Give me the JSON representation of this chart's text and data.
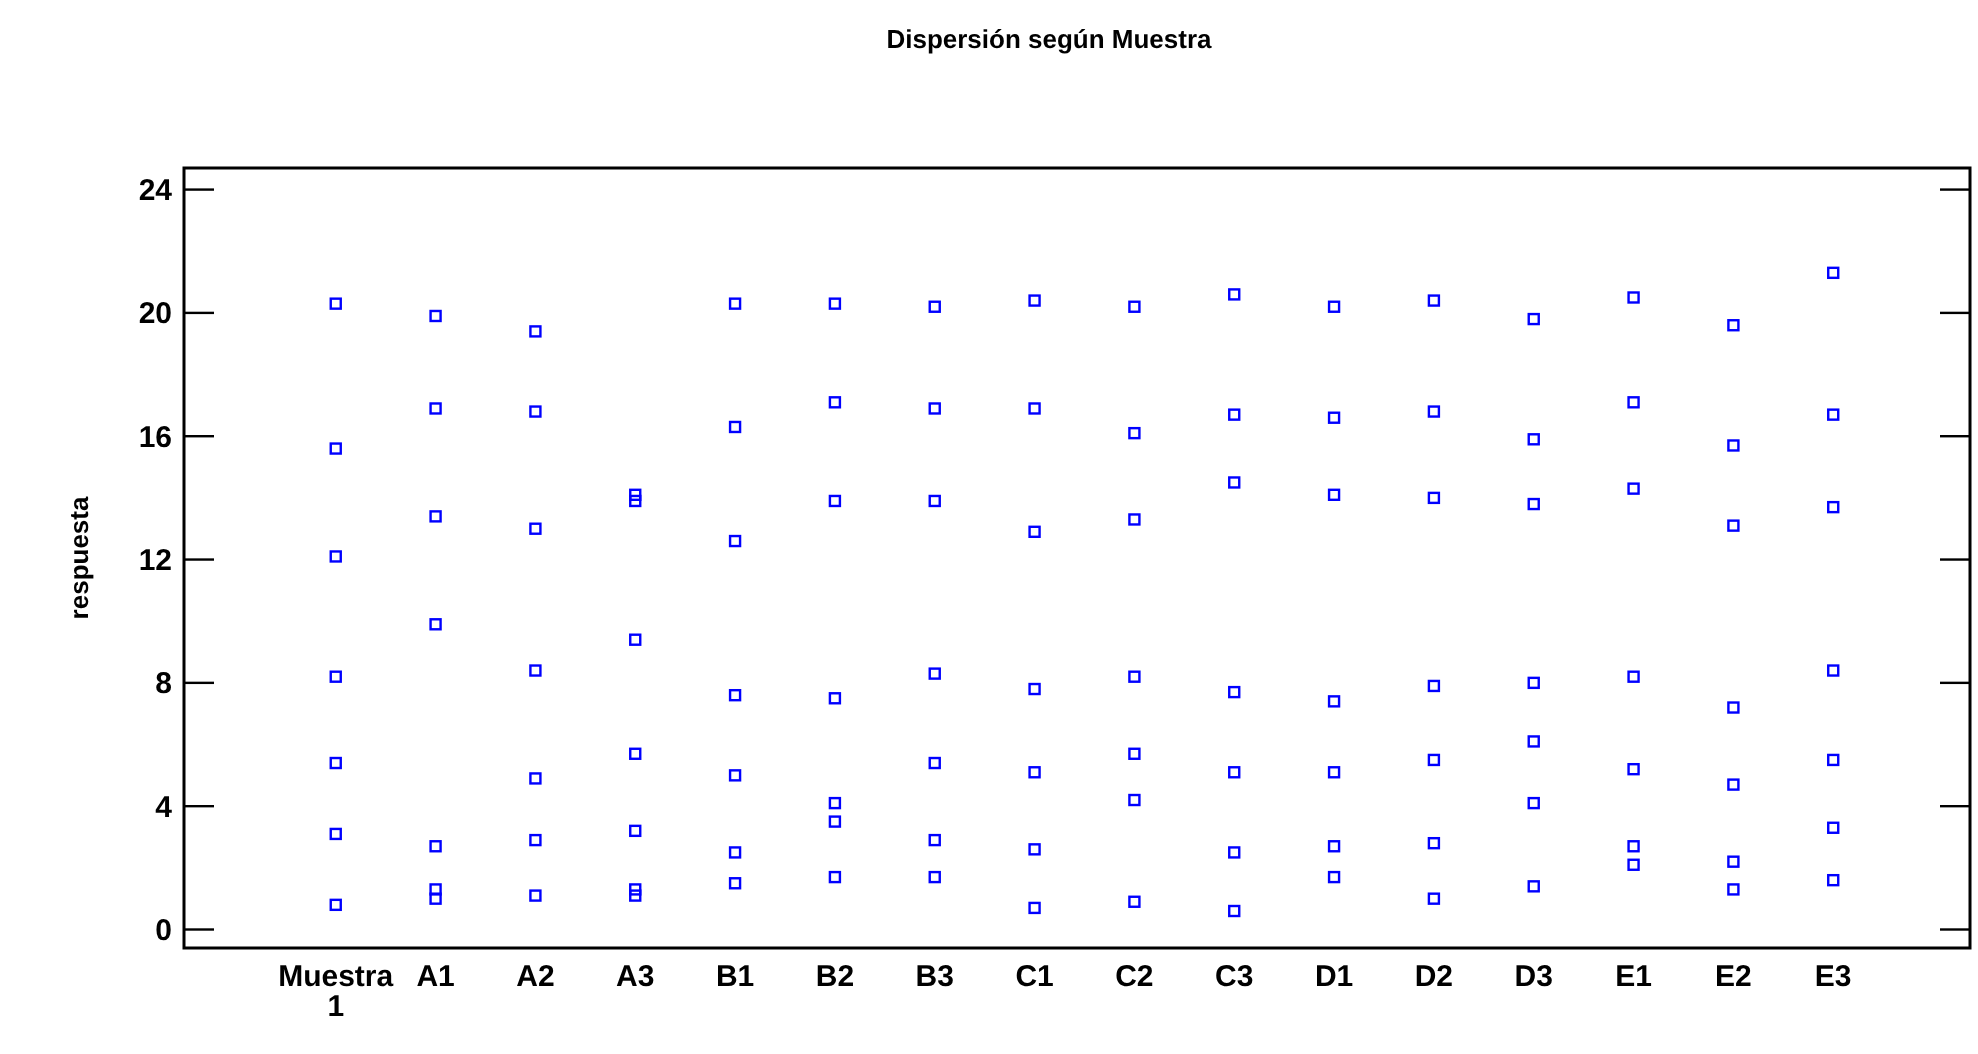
{
  "chart_data": {
    "type": "scatter",
    "title": "Dispersión según Muestra",
    "ylabel": "respuesta",
    "categories": [
      "Muestra 1",
      "A1",
      "A2",
      "A3",
      "B1",
      "B2",
      "B3",
      "C1",
      "C2",
      "C3",
      "D1",
      "D2",
      "D3",
      "E1",
      "E2",
      "E3"
    ],
    "ylim": [
      -0.6,
      24.7
    ],
    "yticks": [
      0,
      4,
      8,
      12,
      16,
      20,
      24
    ],
    "marker": "square",
    "grid": false,
    "series": [
      {
        "color": "#0000ff",
        "x": [
          "Muestra 1",
          "Muestra 1",
          "Muestra 1",
          "Muestra 1",
          "Muestra 1",
          "Muestra 1",
          "Muestra 1",
          "A1",
          "A1",
          "A1",
          "A1",
          "A1",
          "A1",
          "A1",
          "A2",
          "A2",
          "A2",
          "A2",
          "A2",
          "A2",
          "A2",
          "A3",
          "A3",
          "A3",
          "A3",
          "A3",
          "A3",
          "A3",
          "B1",
          "B1",
          "B1",
          "B1",
          "B1",
          "B1",
          "B1",
          "B2",
          "B2",
          "B2",
          "B2",
          "B2",
          "B2",
          "B2",
          "B3",
          "B3",
          "B3",
          "B3",
          "B3",
          "B3",
          "B3",
          "C1",
          "C1",
          "C1",
          "C1",
          "C1",
          "C1",
          "C1",
          "C2",
          "C2",
          "C2",
          "C2",
          "C2",
          "C2",
          "C2",
          "C3",
          "C3",
          "C3",
          "C3",
          "C3",
          "C3",
          "C3",
          "D1",
          "D1",
          "D1",
          "D1",
          "D1",
          "D1",
          "D1",
          "D2",
          "D2",
          "D2",
          "D2",
          "D2",
          "D2",
          "D2",
          "D3",
          "D3",
          "D3",
          "D3",
          "D3",
          "D3",
          "D3",
          "E1",
          "E1",
          "E1",
          "E1",
          "E1",
          "E1",
          "E1",
          "E2",
          "E2",
          "E2",
          "E2",
          "E2",
          "E2",
          "E2",
          "E3",
          "E3",
          "E3",
          "E3",
          "E3",
          "E3",
          "E3"
        ],
        "values": [
          20.3,
          15.6,
          12.1,
          8.2,
          5.4,
          3.1,
          0.8,
          19.9,
          16.9,
          13.4,
          9.9,
          2.7,
          1.3,
          1.0,
          19.4,
          16.8,
          13.0,
          8.4,
          4.9,
          2.9,
          1.1,
          14.1,
          13.9,
          9.4,
          5.7,
          3.2,
          1.3,
          1.1,
          20.3,
          16.3,
          12.6,
          7.6,
          5.0,
          2.5,
          1.5,
          20.3,
          17.1,
          13.9,
          7.5,
          4.1,
          3.5,
          1.7,
          20.2,
          16.9,
          13.9,
          8.3,
          5.4,
          2.9,
          1.7,
          20.4,
          16.9,
          12.9,
          7.8,
          5.1,
          2.6,
          0.7,
          20.2,
          16.1,
          13.3,
          8.2,
          5.7,
          4.2,
          0.9,
          20.6,
          16.7,
          14.5,
          7.7,
          5.1,
          2.5,
          0.6,
          20.2,
          16.6,
          14.1,
          7.4,
          5.1,
          2.7,
          1.7,
          20.4,
          16.8,
          14.0,
          7.9,
          5.5,
          2.8,
          1.0,
          19.8,
          15.9,
          13.8,
          8.0,
          6.1,
          4.1,
          1.4,
          20.5,
          17.1,
          14.3,
          8.2,
          5.2,
          2.7,
          2.1,
          19.6,
          15.7,
          13.1,
          7.2,
          4.7,
          2.2,
          1.3,
          21.3,
          16.7,
          13.7,
          8.4,
          5.5,
          3.3,
          1.6
        ]
      }
    ]
  }
}
